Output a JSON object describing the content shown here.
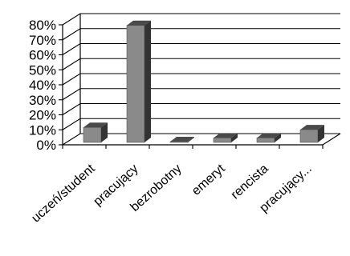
{
  "chart_data": {
    "type": "bar",
    "title": "",
    "xlabel": "",
    "ylabel": "",
    "categories": [
      "uczeń/student",
      "pracujący",
      "bezrobotny",
      "emeryt",
      "rencista",
      "pracujący..."
    ],
    "values": [
      0.1,
      0.78,
      0.0,
      0.03,
      0.03,
      0.085
    ],
    "ylim": [
      0,
      0.8
    ],
    "yticks": [
      "0%",
      "10%",
      "20%",
      "30%",
      "40%",
      "50%",
      "60%",
      "70%",
      "80%"
    ],
    "grid": true,
    "legend": "none",
    "colors": {
      "bar_front": "#8a8a8a",
      "bar_top": "#4a4a4a",
      "bar_side": "#333333",
      "grid": "#000000",
      "text": "#000000"
    }
  }
}
